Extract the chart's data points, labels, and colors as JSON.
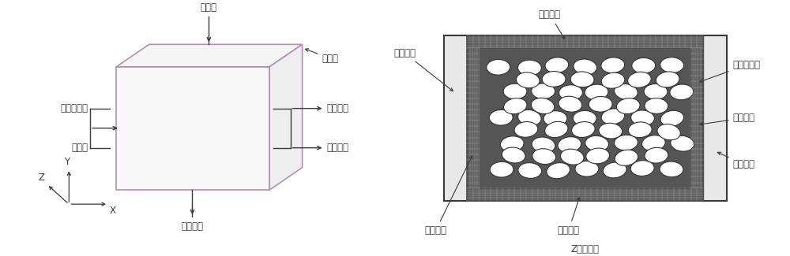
{
  "bg_color": "#ffffff",
  "line_color": "#3a3a3a",
  "box_line_color": "#b090b0",
  "left_diagram": {
    "label_desorbent_top": "脱附剂",
    "label_desorbent_bottom": "脱附物流",
    "label_bed": "吸附床",
    "label_feed": "原料混合物",
    "label_purge": "吹扫剂",
    "label_raffinate": "吸余物流",
    "label_purge_out": "吹扫物流"
  },
  "right_diagram": {
    "label_top_plate": "上多孔板",
    "label_bottom_plate": "下多孔板",
    "label_left_plate": "左多孔板",
    "label_right_plate": "右多孔板",
    "label_dist_space": "分布空间",
    "label_collect_space": "收集空间",
    "label_adsorbent": "吸附剂床层",
    "label_z_view": "Z向剖视图"
  },
  "font_size": 8.5,
  "font_family": "SimHei"
}
